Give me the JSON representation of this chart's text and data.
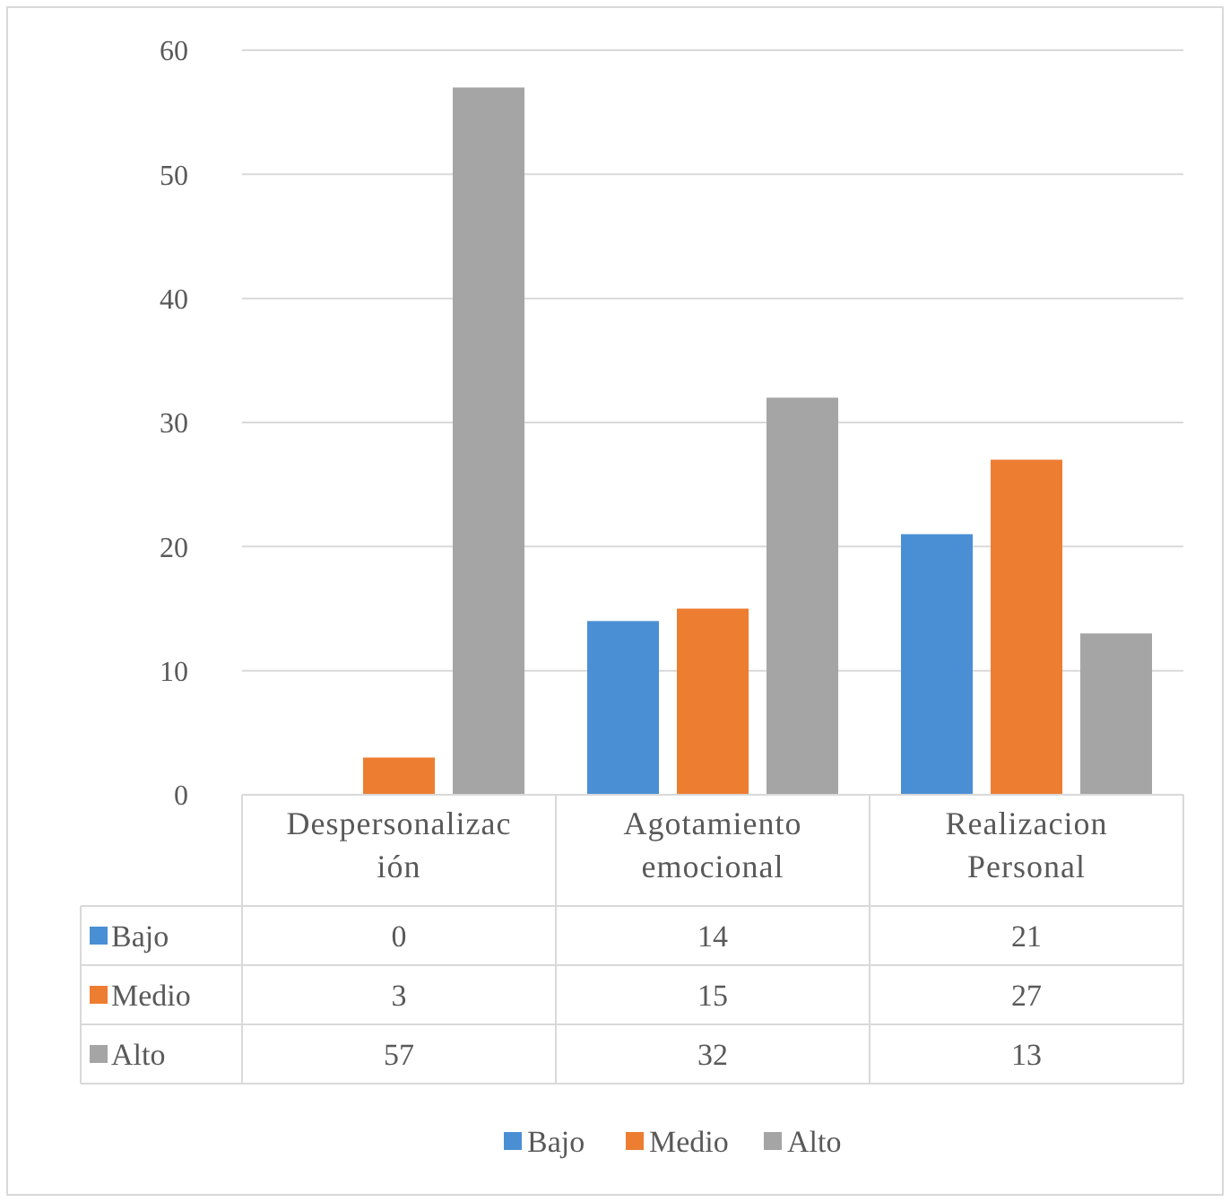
{
  "chart_data": {
    "type": "bar",
    "categories": [
      "Despersonalización",
      "Agotamiento emocional",
      "Realizacion Personal"
    ],
    "series": [
      {
        "name": "Bajo",
        "color": "#4a8fd4",
        "values": [
          0,
          14,
          21
        ]
      },
      {
        "name": "Medio",
        "color": "#ed7d31",
        "values": [
          3,
          15,
          27
        ]
      },
      {
        "name": "Alto",
        "color": "#a5a5a5",
        "values": [
          57,
          32,
          13
        ]
      }
    ],
    "ylim": [
      0,
      60
    ],
    "yticks": [
      0,
      10,
      20,
      30,
      40,
      50,
      60
    ],
    "grid": "y",
    "legend": "bottom",
    "data_labels": true
  }
}
